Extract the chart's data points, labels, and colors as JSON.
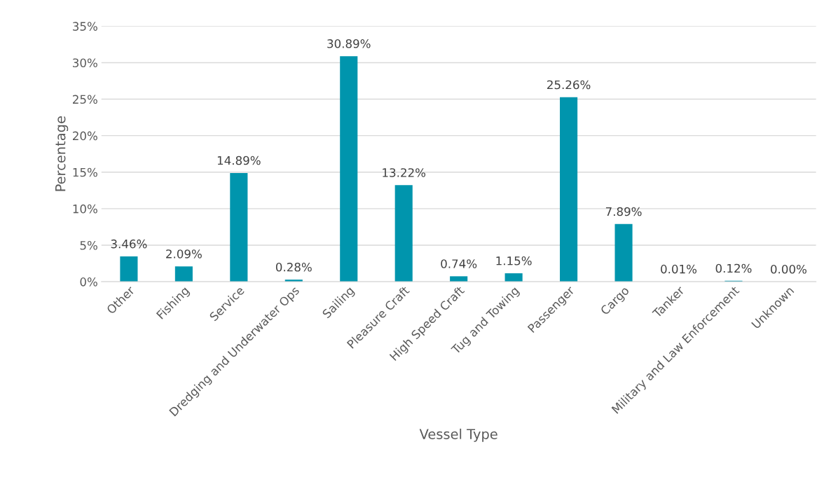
{
  "chart_data": {
    "type": "bar",
    "xlabel": "Vessel Type",
    "ylabel": "Percentage",
    "categories": [
      "Other",
      "Fishing",
      "Service",
      "Dredging and Underwater Ops",
      "Sailing",
      "Pleasure Craft",
      "High Speed Craft",
      "Tug and Towing",
      "Passenger",
      "Cargo",
      "Tanker",
      "Military and Law Enforcement",
      "Unknown"
    ],
    "values": [
      3.46,
      2.09,
      14.89,
      0.28,
      30.89,
      13.22,
      0.74,
      1.15,
      25.26,
      7.89,
      0.01,
      0.12,
      0.0
    ],
    "value_labels": [
      "3.46%",
      "2.09%",
      "14.89%",
      "0.28%",
      "30.89%",
      "13.22%",
      "0.74%",
      "1.15%",
      "25.26%",
      "7.89%",
      "0.01%",
      "0.12%",
      "0.00%"
    ],
    "color": "#0095ad",
    "ylim": [
      0,
      35
    ],
    "yticks": [
      {
        "value": 0,
        "label": "0%"
      },
      {
        "value": 5,
        "label": "5%"
      },
      {
        "value": 10,
        "label": "10%"
      },
      {
        "value": 15,
        "label": "15%"
      },
      {
        "value": 20,
        "label": "20%"
      },
      {
        "value": 25,
        "label": "25%"
      },
      {
        "value": 30,
        "label": "30%"
      },
      {
        "value": 35,
        "label": "35%"
      }
    ],
    "grid": "y",
    "legend": false
  }
}
